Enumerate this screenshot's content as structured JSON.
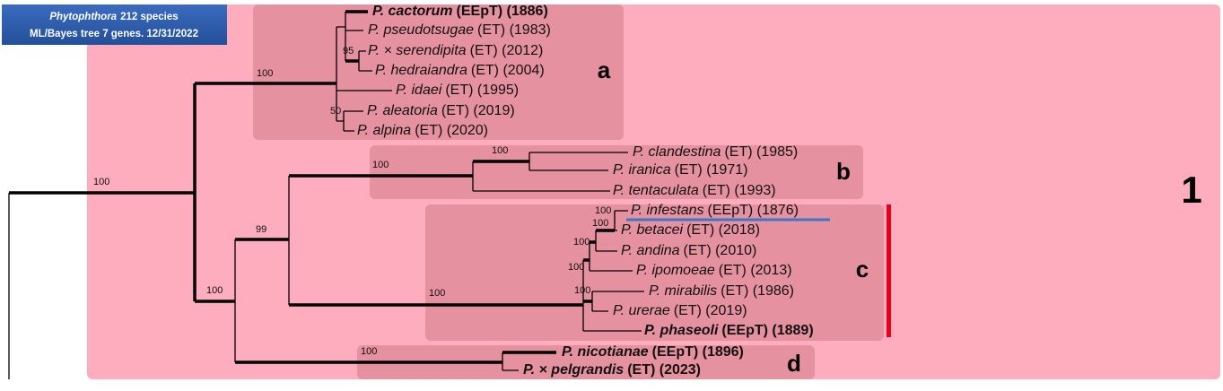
{
  "header": {
    "genus": "Phytophthora",
    "count": "212 species",
    "subtitle": "ML/Bayes tree 7 genes. 12/31/2022"
  },
  "taxa": [
    {
      "name": "P. cactorum",
      "rest": "(EEpT) (1886)",
      "bold": true
    },
    {
      "name": "P. pseudotsugae",
      "rest": "(ET) (1983)",
      "bold": false
    },
    {
      "name": "P. × serendipita",
      "rest": "(ET) (2012)",
      "bold": false
    },
    {
      "name": "P. hedraiandra",
      "rest": "(ET) (2004)",
      "bold": false
    },
    {
      "name": "P. idaei",
      "rest": "(ET) (1995)",
      "bold": false
    },
    {
      "name": "P. aleatoria",
      "rest": "(ET) (2019)",
      "bold": false
    },
    {
      "name": "P. alpina",
      "rest": "(ET) (2020)",
      "bold": false
    },
    {
      "name": "P. clandestina",
      "rest": "(ET) (1985)",
      "bold": false
    },
    {
      "name": "P. iranica",
      "rest": "(ET) (1971)",
      "bold": false
    },
    {
      "name": "P. tentaculata",
      "rest": "(ET) (1993)",
      "bold": false
    },
    {
      "name": "P. infestans",
      "rest": "(EEpT) (1876)",
      "bold": false
    },
    {
      "name": "P. betacei",
      "rest": "(ET) (2018)",
      "bold": false
    },
    {
      "name": "P. andina",
      "rest": "(ET) (2010)",
      "bold": false
    },
    {
      "name": "P. ipomoeae",
      "rest": "(ET) (2013)",
      "bold": false
    },
    {
      "name": "P. mirabilis",
      "rest": "(ET) (1986)",
      "bold": false
    },
    {
      "name": "P. urerae",
      "rest": "(ET) (2019)",
      "bold": false
    },
    {
      "name": "P. phaseoli",
      "rest": "(EEpT) (1889)",
      "bold": true
    },
    {
      "name": "P. nicotianae",
      "rest": "(EEpT) (1896)",
      "bold": true
    },
    {
      "name": "P. × pelgrandis",
      "rest": "(ET) (2023)",
      "bold": true
    }
  ],
  "clades": [
    "a",
    "b",
    "c",
    "d"
  ],
  "group": "1",
  "supports": [
    100,
    100,
    95,
    50,
    100,
    99,
    100,
    100,
    100,
    100,
    100,
    100,
    100,
    100,
    100
  ]
}
